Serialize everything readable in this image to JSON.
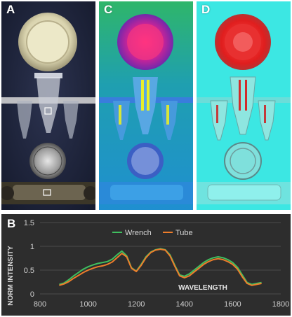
{
  "panels": {
    "a": {
      "label": "A"
    },
    "c": {
      "label": "C"
    },
    "d": {
      "label": "D"
    },
    "b": {
      "label": "B"
    }
  },
  "colors": {
    "wrench": "#3fbf5f",
    "tube": "#ee7d2b",
    "chart_bg": "#2d2d2d",
    "axis_text": "#d0d0d0",
    "frame_text": "#ffffff"
  },
  "chart_data": {
    "type": "line",
    "title": "",
    "xlabel": "",
    "ylabel": "NORM INTENSITY",
    "annotation": "WAVELENGTH",
    "xlim": [
      800,
      1800
    ],
    "ylim": [
      0,
      1.5
    ],
    "xticks": [
      "800",
      "1000",
      "1200",
      "1400",
      "1600",
      "1800"
    ],
    "yticks": [
      "0",
      "0.5",
      "1",
      "1.5"
    ],
    "legend": "top-center",
    "grid": true,
    "series": [
      {
        "name": "Wrench",
        "x": [
          880,
          900,
          920,
          940,
          960,
          980,
          1000,
          1020,
          1040,
          1060,
          1080,
          1100,
          1120,
          1140,
          1160,
          1180,
          1200,
          1220,
          1240,
          1260,
          1280,
          1300,
          1320,
          1340,
          1360,
          1380,
          1400,
          1420,
          1440,
          1460,
          1480,
          1500,
          1520,
          1540,
          1560,
          1580,
          1600,
          1620,
          1640,
          1660,
          1680,
          1700,
          1720
        ],
        "y": [
          0.2,
          0.23,
          0.3,
          0.38,
          0.45,
          0.52,
          0.57,
          0.61,
          0.64,
          0.66,
          0.68,
          0.73,
          0.82,
          0.9,
          0.8,
          0.55,
          0.48,
          0.62,
          0.78,
          0.88,
          0.93,
          0.95,
          0.93,
          0.82,
          0.6,
          0.4,
          0.37,
          0.42,
          0.5,
          0.58,
          0.66,
          0.72,
          0.76,
          0.78,
          0.76,
          0.72,
          0.66,
          0.56,
          0.4,
          0.24,
          0.2,
          0.22,
          0.24
        ]
      },
      {
        "name": "Tube",
        "x": [
          880,
          900,
          920,
          940,
          960,
          980,
          1000,
          1020,
          1040,
          1060,
          1080,
          1100,
          1120,
          1140,
          1160,
          1180,
          1200,
          1220,
          1240,
          1260,
          1280,
          1300,
          1320,
          1340,
          1360,
          1380,
          1400,
          1420,
          1440,
          1460,
          1480,
          1500,
          1520,
          1540,
          1560,
          1580,
          1600,
          1620,
          1640,
          1660,
          1680,
          1700,
          1720
        ],
        "y": [
          0.18,
          0.21,
          0.26,
          0.33,
          0.39,
          0.45,
          0.5,
          0.54,
          0.57,
          0.59,
          0.62,
          0.67,
          0.76,
          0.85,
          0.78,
          0.54,
          0.47,
          0.6,
          0.76,
          0.87,
          0.92,
          0.94,
          0.92,
          0.8,
          0.58,
          0.38,
          0.34,
          0.38,
          0.46,
          0.54,
          0.62,
          0.68,
          0.72,
          0.74,
          0.72,
          0.68,
          0.62,
          0.52,
          0.36,
          0.22,
          0.18,
          0.2,
          0.22
        ]
      }
    ]
  }
}
